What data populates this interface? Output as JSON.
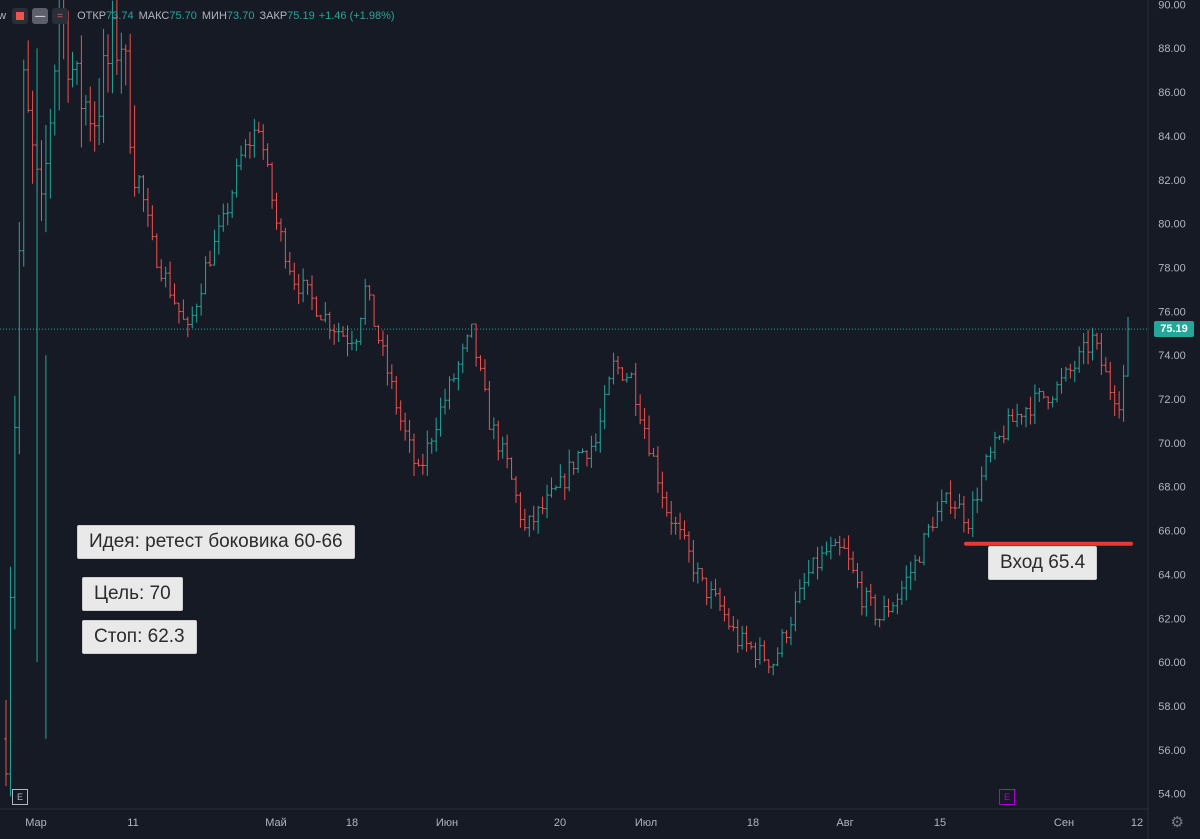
{
  "legend": {
    "fragment": "ew",
    "items": [
      {
        "key": "ОТКР",
        "value": "73.74"
      },
      {
        "key": "МАКС",
        "value": "75.70"
      },
      {
        "key": "МИН",
        "value": "73.70"
      },
      {
        "key": "ЗАКР",
        "value": "75.19"
      },
      {
        "key": "",
        "value": "+1.46 (+1.98%)"
      }
    ]
  },
  "annotations": {
    "idea": "Идея: ретест боковика 60-66",
    "target": "Цель: 70",
    "stop": "Стоп: 62.3",
    "entry": "Вход 65.4"
  },
  "price_tag": "75.19",
  "events": {
    "left": "E",
    "right": "E"
  },
  "colors": {
    "background": "#161a25",
    "up": "#26a69a",
    "down": "#ef5350",
    "axis_text": "#b2b5be",
    "entry_line": "#e83a30",
    "event_right": "#b000d8"
  },
  "chart_data": {
    "type": "ohlc",
    "ylim": [
      53.3,
      90.2
    ],
    "y_ticks": [
      "90.00",
      "88.00",
      "86.00",
      "84.00",
      "82.00",
      "80.00",
      "78.00",
      "76.00",
      "74.00",
      "72.00",
      "70.00",
      "68.00",
      "66.00",
      "64.00",
      "62.00",
      "60.00",
      "58.00",
      "56.00",
      "54.00"
    ],
    "x_ticks": [
      "Мар",
      "11",
      "Май",
      "18",
      "Июн",
      "20",
      "Июл",
      "18",
      "Авг",
      "15",
      "Сен",
      "12"
    ],
    "last_price": 75.19,
    "entry_level": 65.4,
    "grid": false,
    "anchors": [
      [
        0,
        56.5
      ],
      [
        4,
        86
      ],
      [
        8,
        80
      ],
      [
        12,
        90
      ],
      [
        16,
        86
      ],
      [
        20,
        85
      ],
      [
        24,
        88
      ],
      [
        26,
        88.5
      ],
      [
        29,
        83
      ],
      [
        33,
        79
      ],
      [
        37,
        77
      ],
      [
        41,
        75
      ],
      [
        45,
        78
      ],
      [
        49,
        80
      ],
      [
        53,
        83
      ],
      [
        57,
        84.5
      ],
      [
        61,
        80
      ],
      [
        65,
        77.5
      ],
      [
        69,
        76.5
      ],
      [
        73,
        75.5
      ],
      [
        77,
        74.8
      ],
      [
        79,
        75
      ],
      [
        81,
        77
      ],
      [
        85,
        74
      ],
      [
        89,
        71
      ],
      [
        93,
        68.5
      ],
      [
        97,
        71
      ],
      [
        101,
        73
      ],
      [
        105,
        75
      ],
      [
        109,
        71
      ],
      [
        113,
        69
      ],
      [
        117,
        66
      ],
      [
        121,
        67
      ],
      [
        125,
        68
      ],
      [
        129,
        69.5
      ],
      [
        133,
        70
      ],
      [
        137,
        73.5
      ],
      [
        141,
        73
      ],
      [
        145,
        70
      ],
      [
        149,
        67
      ],
      [
        153,
        65.3
      ],
      [
        157,
        63.5
      ],
      [
        161,
        62.5
      ],
      [
        165,
        61
      ],
      [
        169,
        60.5
      ],
      [
        173,
        60
      ],
      [
        177,
        62
      ],
      [
        181,
        64
      ],
      [
        185,
        65
      ],
      [
        189,
        65
      ],
      [
        193,
        63
      ],
      [
        197,
        62
      ],
      [
        201,
        63
      ],
      [
        205,
        64.5
      ],
      [
        209,
        66.5
      ],
      [
        213,
        67.5
      ],
      [
        217,
        66.5
      ],
      [
        221,
        69
      ],
      [
        225,
        70.5
      ],
      [
        229,
        71.5
      ],
      [
        233,
        72
      ],
      [
        237,
        72.5
      ],
      [
        241,
        73.5
      ],
      [
        245,
        74.7
      ],
      [
        249,
        72.5
      ],
      [
        251,
        72
      ],
      [
        253,
        74
      ]
    ]
  }
}
